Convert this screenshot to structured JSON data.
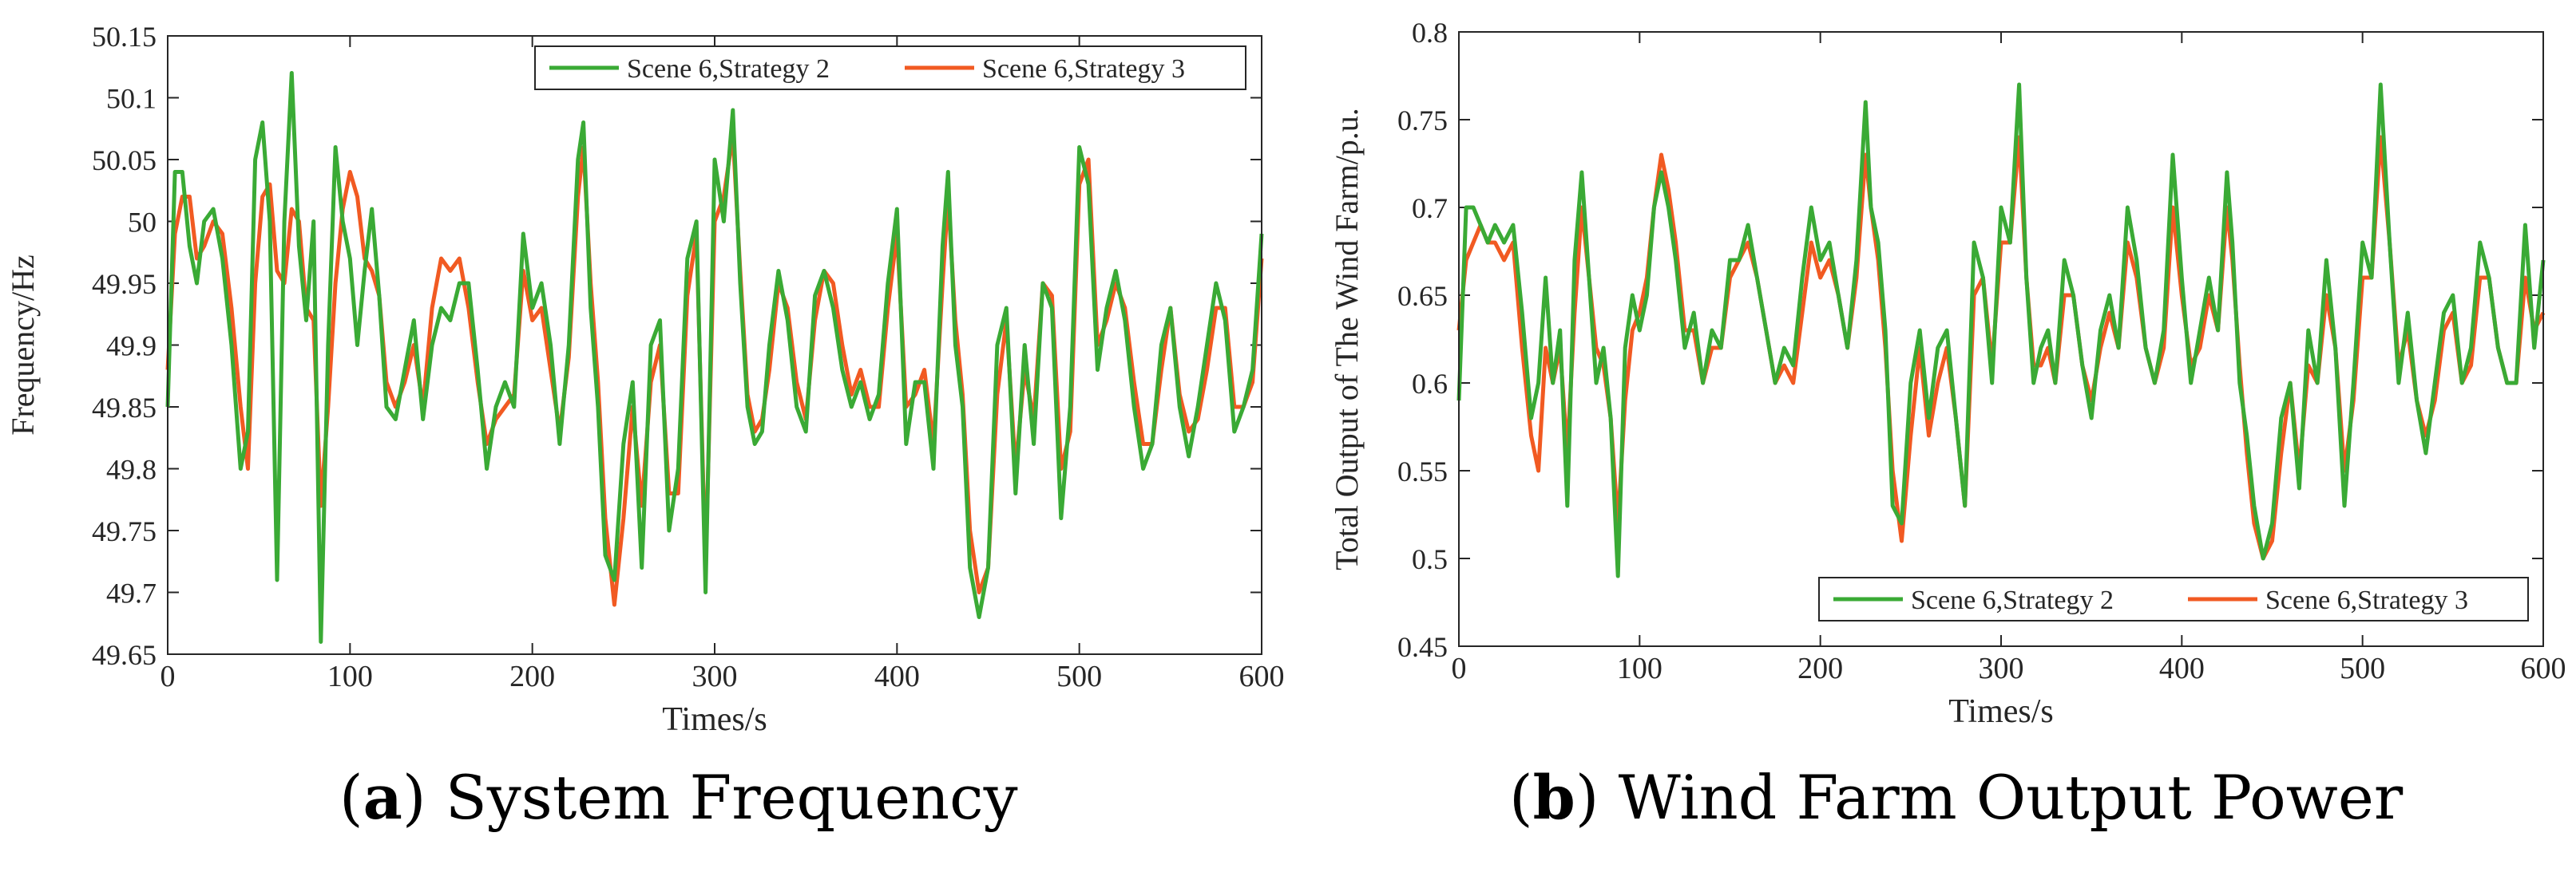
{
  "chart_data": [
    {
      "type": "line",
      "caption_letter": "a",
      "caption_text": "System Frequency",
      "xlabel": "Times/s",
      "ylabel": "Frequency/Hz",
      "xlim": [
        0,
        600
      ],
      "ylim": [
        49.65,
        50.15
      ],
      "xticks": [
        0,
        100,
        200,
        300,
        400,
        500,
        600
      ],
      "yticks": [
        49.65,
        49.7,
        49.75,
        49.8,
        49.85,
        49.9,
        49.95,
        50,
        50.05,
        50.1,
        50.15
      ],
      "legend_position": "top-right",
      "series": [
        {
          "name": "Scene 6,Strategy 2",
          "color": "#3aaa35",
          "x": [
            0,
            4,
            8,
            12,
            16,
            20,
            25,
            30,
            35,
            40,
            44,
            48,
            52,
            56,
            60,
            64,
            68,
            72,
            76,
            80,
            84,
            88,
            92,
            96,
            100,
            104,
            108,
            112,
            116,
            120,
            125,
            130,
            135,
            140,
            145,
            150,
            155,
            160,
            165,
            170,
            175,
            180,
            185,
            190,
            195,
            200,
            205,
            210,
            215,
            220,
            225,
            228,
            232,
            236,
            240,
            245,
            250,
            255,
            260,
            265,
            270,
            275,
            280,
            285,
            290,
            295,
            300,
            305,
            310,
            314,
            318,
            322,
            326,
            330,
            335,
            340,
            345,
            350,
            355,
            360,
            365,
            370,
            375,
            380,
            385,
            390,
            395,
            400,
            405,
            410,
            415,
            420,
            425,
            428,
            432,
            436,
            440,
            445,
            450,
            455,
            460,
            465,
            470,
            475,
            480,
            485,
            490,
            495,
            500,
            505,
            510,
            515,
            520,
            525,
            530,
            535,
            540,
            545,
            550,
            555,
            560,
            565,
            570,
            575,
            580,
            585,
            590,
            595,
            600
          ],
          "values": [
            49.85,
            50.04,
            50.04,
            49.98,
            49.95,
            50.0,
            50.01,
            49.97,
            49.9,
            49.8,
            49.83,
            50.05,
            50.08,
            50.0,
            49.71,
            50.0,
            50.12,
            49.98,
            49.92,
            50.0,
            49.66,
            49.9,
            50.06,
            50.0,
            49.97,
            49.9,
            49.96,
            50.01,
            49.94,
            49.85,
            49.84,
            49.88,
            49.92,
            49.84,
            49.9,
            49.93,
            49.92,
            49.95,
            49.95,
            49.88,
            49.8,
            49.85,
            49.87,
            49.85,
            49.99,
            49.93,
            49.95,
            49.9,
            49.82,
            49.9,
            50.05,
            50.08,
            49.93,
            49.85,
            49.73,
            49.71,
            49.82,
            49.87,
            49.72,
            49.9,
            49.92,
            49.75,
            49.8,
            49.97,
            50.0,
            49.7,
            50.05,
            50.0,
            50.09,
            49.95,
            49.85,
            49.82,
            49.83,
            49.9,
            49.96,
            49.92,
            49.85,
            49.83,
            49.94,
            49.96,
            49.93,
            49.88,
            49.85,
            49.87,
            49.84,
            49.86,
            49.95,
            50.01,
            49.82,
            49.87,
            49.87,
            49.8,
            49.98,
            50.04,
            49.9,
            49.85,
            49.72,
            49.68,
            49.72,
            49.9,
            49.93,
            49.78,
            49.9,
            49.82,
            49.95,
            49.93,
            49.76,
            49.85,
            50.06,
            50.03,
            49.88,
            49.93,
            49.96,
            49.92,
            49.85,
            49.8,
            49.82,
            49.9,
            49.93,
            49.85,
            49.81,
            49.85,
            49.9,
            49.95,
            49.92,
            49.83,
            49.85,
            49.88,
            49.99
          ]
        },
        {
          "name": "Scene 6,Strategy 3",
          "color": "#f15a22",
          "x": [
            0,
            4,
            8,
            12,
            16,
            20,
            25,
            30,
            35,
            40,
            44,
            48,
            52,
            56,
            60,
            64,
            68,
            72,
            76,
            80,
            84,
            88,
            92,
            96,
            100,
            104,
            108,
            112,
            116,
            120,
            125,
            130,
            135,
            140,
            145,
            150,
            155,
            160,
            165,
            170,
            175,
            180,
            185,
            190,
            195,
            200,
            205,
            210,
            215,
            220,
            225,
            228,
            232,
            236,
            240,
            245,
            250,
            255,
            260,
            265,
            270,
            275,
            280,
            285,
            290,
            295,
            300,
            305,
            310,
            314,
            318,
            322,
            326,
            330,
            335,
            340,
            345,
            350,
            355,
            360,
            365,
            370,
            375,
            380,
            385,
            390,
            395,
            400,
            405,
            410,
            415,
            420,
            425,
            428,
            432,
            436,
            440,
            445,
            450,
            455,
            460,
            465,
            470,
            475,
            480,
            485,
            490,
            495,
            500,
            505,
            510,
            515,
            520,
            525,
            530,
            535,
            540,
            545,
            550,
            555,
            560,
            565,
            570,
            575,
            580,
            585,
            590,
            595,
            600
          ],
          "values": [
            49.88,
            49.99,
            50.02,
            50.02,
            49.97,
            49.98,
            50.0,
            49.99,
            49.93,
            49.85,
            49.8,
            49.95,
            50.02,
            50.03,
            49.96,
            49.95,
            50.01,
            50.0,
            49.93,
            49.92,
            49.77,
            49.85,
            49.95,
            50.01,
            50.04,
            50.02,
            49.97,
            49.96,
            49.94,
            49.87,
            49.85,
            49.87,
            49.9,
            49.85,
            49.93,
            49.97,
            49.96,
            49.97,
            49.93,
            49.87,
            49.82,
            49.84,
            49.85,
            49.86,
            49.96,
            49.92,
            49.93,
            49.88,
            49.83,
            49.89,
            50.02,
            50.06,
            49.95,
            49.87,
            49.76,
            49.69,
            49.76,
            49.85,
            49.77,
            49.87,
            49.9,
            49.78,
            49.78,
            49.94,
            49.99,
            49.72,
            50.0,
            50.02,
            50.07,
            49.96,
            49.86,
            49.83,
            49.84,
            49.88,
            49.95,
            49.93,
            49.87,
            49.84,
            49.92,
            49.96,
            49.95,
            49.9,
            49.86,
            49.88,
            49.85,
            49.85,
            49.93,
            49.99,
            49.85,
            49.86,
            49.88,
            49.82,
            49.95,
            50.02,
            49.92,
            49.86,
            49.75,
            49.7,
            49.72,
            49.86,
            49.92,
            49.8,
            49.88,
            49.84,
            49.95,
            49.94,
            49.8,
            49.83,
            50.03,
            50.05,
            49.9,
            49.92,
            49.95,
            49.93,
            49.87,
            49.82,
            49.82,
            49.88,
            49.93,
            49.86,
            49.83,
            49.84,
            49.88,
            49.93,
            49.93,
            49.85,
            49.85,
            49.87,
            49.97
          ]
        }
      ]
    },
    {
      "type": "line",
      "caption_letter": "b",
      "caption_text": "Wind Farm Output Power",
      "xlabel": "Times/s",
      "ylabel": "Total Output of The Wind Farm/p.u.",
      "xlim": [
        0,
        600
      ],
      "ylim": [
        0.45,
        0.8
      ],
      "xticks": [
        0,
        100,
        200,
        300,
        400,
        500,
        600
      ],
      "yticks": [
        0.45,
        0.5,
        0.55,
        0.6,
        0.65,
        0.7,
        0.75,
        0.8
      ],
      "legend_position": "bottom-right",
      "series": [
        {
          "name": "Scene 6,Strategy 2",
          "color": "#3aaa35",
          "x": [
            0,
            4,
            8,
            12,
            16,
            20,
            25,
            30,
            35,
            40,
            44,
            48,
            52,
            56,
            60,
            64,
            68,
            72,
            76,
            80,
            84,
            88,
            92,
            96,
            100,
            104,
            108,
            112,
            116,
            120,
            125,
            130,
            135,
            140,
            145,
            150,
            155,
            160,
            165,
            170,
            175,
            180,
            185,
            190,
            195,
            200,
            205,
            210,
            215,
            220,
            225,
            228,
            232,
            236,
            240,
            245,
            250,
            255,
            260,
            265,
            270,
            275,
            280,
            285,
            290,
            295,
            300,
            305,
            310,
            314,
            318,
            322,
            326,
            330,
            335,
            340,
            345,
            350,
            355,
            360,
            365,
            370,
            375,
            380,
            385,
            390,
            395,
            400,
            405,
            410,
            415,
            420,
            425,
            428,
            432,
            436,
            440,
            445,
            450,
            455,
            460,
            465,
            470,
            475,
            480,
            485,
            490,
            495,
            500,
            505,
            510,
            515,
            520,
            525,
            530,
            535,
            540,
            545,
            550,
            555,
            560,
            565,
            570,
            575,
            580,
            585,
            590,
            595,
            600
          ],
          "values": [
            0.59,
            0.7,
            0.7,
            0.69,
            0.68,
            0.69,
            0.68,
            0.69,
            0.64,
            0.58,
            0.6,
            0.66,
            0.6,
            0.63,
            0.53,
            0.67,
            0.72,
            0.66,
            0.6,
            0.62,
            0.58,
            0.49,
            0.62,
            0.65,
            0.63,
            0.65,
            0.7,
            0.72,
            0.7,
            0.67,
            0.62,
            0.64,
            0.6,
            0.63,
            0.62,
            0.67,
            0.67,
            0.69,
            0.66,
            0.63,
            0.6,
            0.62,
            0.61,
            0.66,
            0.7,
            0.67,
            0.68,
            0.65,
            0.62,
            0.67,
            0.76,
            0.7,
            0.68,
            0.63,
            0.53,
            0.52,
            0.6,
            0.63,
            0.58,
            0.62,
            0.63,
            0.58,
            0.53,
            0.68,
            0.66,
            0.6,
            0.7,
            0.68,
            0.77,
            0.66,
            0.6,
            0.62,
            0.63,
            0.6,
            0.67,
            0.65,
            0.61,
            0.58,
            0.63,
            0.65,
            0.62,
            0.7,
            0.67,
            0.62,
            0.6,
            0.63,
            0.73,
            0.66,
            0.6,
            0.63,
            0.66,
            0.63,
            0.72,
            0.68,
            0.6,
            0.57,
            0.53,
            0.5,
            0.52,
            0.58,
            0.6,
            0.54,
            0.63,
            0.6,
            0.67,
            0.62,
            0.53,
            0.6,
            0.68,
            0.66,
            0.77,
            0.68,
            0.6,
            0.64,
            0.59,
            0.56,
            0.6,
            0.64,
            0.65,
            0.6,
            0.62,
            0.68,
            0.66,
            0.62,
            0.6,
            0.6,
            0.69,
            0.62,
            0.67
          ]
        },
        {
          "name": "Scene 6,Strategy 3",
          "color": "#f15a22",
          "x": [
            0,
            4,
            8,
            12,
            16,
            20,
            25,
            30,
            35,
            40,
            44,
            48,
            52,
            56,
            60,
            64,
            68,
            72,
            76,
            80,
            84,
            88,
            92,
            96,
            100,
            104,
            108,
            112,
            116,
            120,
            125,
            130,
            135,
            140,
            145,
            150,
            155,
            160,
            165,
            170,
            175,
            180,
            185,
            190,
            195,
            200,
            205,
            210,
            215,
            220,
            225,
            228,
            232,
            236,
            240,
            245,
            250,
            255,
            260,
            265,
            270,
            275,
            280,
            285,
            290,
            295,
            300,
            305,
            310,
            314,
            318,
            322,
            326,
            330,
            335,
            340,
            345,
            350,
            355,
            360,
            365,
            370,
            375,
            380,
            385,
            390,
            395,
            400,
            405,
            410,
            415,
            420,
            425,
            428,
            432,
            436,
            440,
            445,
            450,
            455,
            460,
            465,
            470,
            475,
            480,
            485,
            490,
            495,
            500,
            505,
            510,
            515,
            520,
            525,
            530,
            535,
            540,
            545,
            550,
            555,
            560,
            565,
            570,
            575,
            580,
            585,
            590,
            595,
            600
          ],
          "values": [
            0.63,
            0.67,
            0.68,
            0.69,
            0.68,
            0.68,
            0.67,
            0.68,
            0.62,
            0.57,
            0.55,
            0.62,
            0.6,
            0.62,
            0.56,
            0.64,
            0.7,
            0.66,
            0.62,
            0.61,
            0.58,
            0.52,
            0.59,
            0.63,
            0.64,
            0.66,
            0.7,
            0.73,
            0.71,
            0.68,
            0.63,
            0.63,
            0.6,
            0.62,
            0.62,
            0.66,
            0.67,
            0.68,
            0.66,
            0.63,
            0.6,
            0.61,
            0.6,
            0.64,
            0.68,
            0.66,
            0.67,
            0.65,
            0.62,
            0.66,
            0.73,
            0.7,
            0.67,
            0.62,
            0.55,
            0.51,
            0.57,
            0.62,
            0.57,
            0.6,
            0.62,
            0.58,
            0.53,
            0.65,
            0.66,
            0.61,
            0.68,
            0.68,
            0.74,
            0.66,
            0.61,
            0.61,
            0.62,
            0.6,
            0.65,
            0.65,
            0.61,
            0.59,
            0.62,
            0.64,
            0.62,
            0.68,
            0.66,
            0.62,
            0.6,
            0.62,
            0.7,
            0.65,
            0.61,
            0.62,
            0.65,
            0.63,
            0.7,
            0.67,
            0.61,
            0.56,
            0.52,
            0.5,
            0.51,
            0.56,
            0.6,
            0.55,
            0.61,
            0.6,
            0.65,
            0.62,
            0.55,
            0.59,
            0.66,
            0.66,
            0.74,
            0.68,
            0.61,
            0.63,
            0.59,
            0.57,
            0.59,
            0.63,
            0.64,
            0.6,
            0.61,
            0.66,
            0.66,
            0.62,
            0.6,
            0.6,
            0.66,
            0.63,
            0.64
          ]
        }
      ]
    }
  ]
}
